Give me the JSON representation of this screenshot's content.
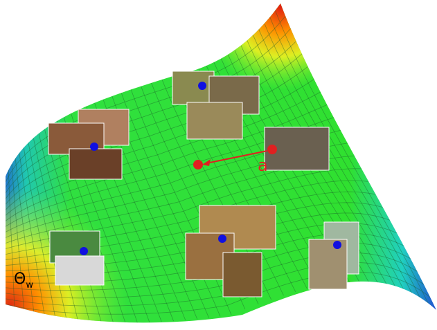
{
  "labels": {
    "perturbation": "a",
    "parameter_symbol": "Θ",
    "parameter_subscript": "w"
  }
}
